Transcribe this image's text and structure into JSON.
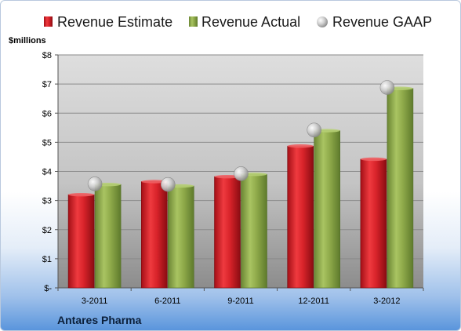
{
  "chart_data": {
    "type": "bar",
    "unit_label": "$millions",
    "company": "Antares Pharma",
    "categories": [
      "3-2011",
      "6-2011",
      "9-2011",
      "12-2011",
      "3-2012"
    ],
    "series": [
      {
        "name": "Revenue Estimate",
        "kind": "bar",
        "color": "#d8232a",
        "values": [
          3.2,
          3.65,
          3.82,
          4.87,
          4.42
        ]
      },
      {
        "name": "Revenue Actual",
        "kind": "bar",
        "color": "#8faa4a",
        "values": [
          3.55,
          3.5,
          3.9,
          5.4,
          6.85
        ]
      },
      {
        "name": "Revenue GAAP",
        "kind": "marker",
        "color": "#c8c8c8",
        "values": [
          3.57,
          3.55,
          3.92,
          5.42,
          6.88
        ]
      }
    ],
    "y_ticks": [
      "$-",
      "$1",
      "$2",
      "$3",
      "$4",
      "$5",
      "$6",
      "$7",
      "$8"
    ],
    "ylim": [
      0,
      8
    ],
    "grid": true,
    "legend_position": "top"
  }
}
